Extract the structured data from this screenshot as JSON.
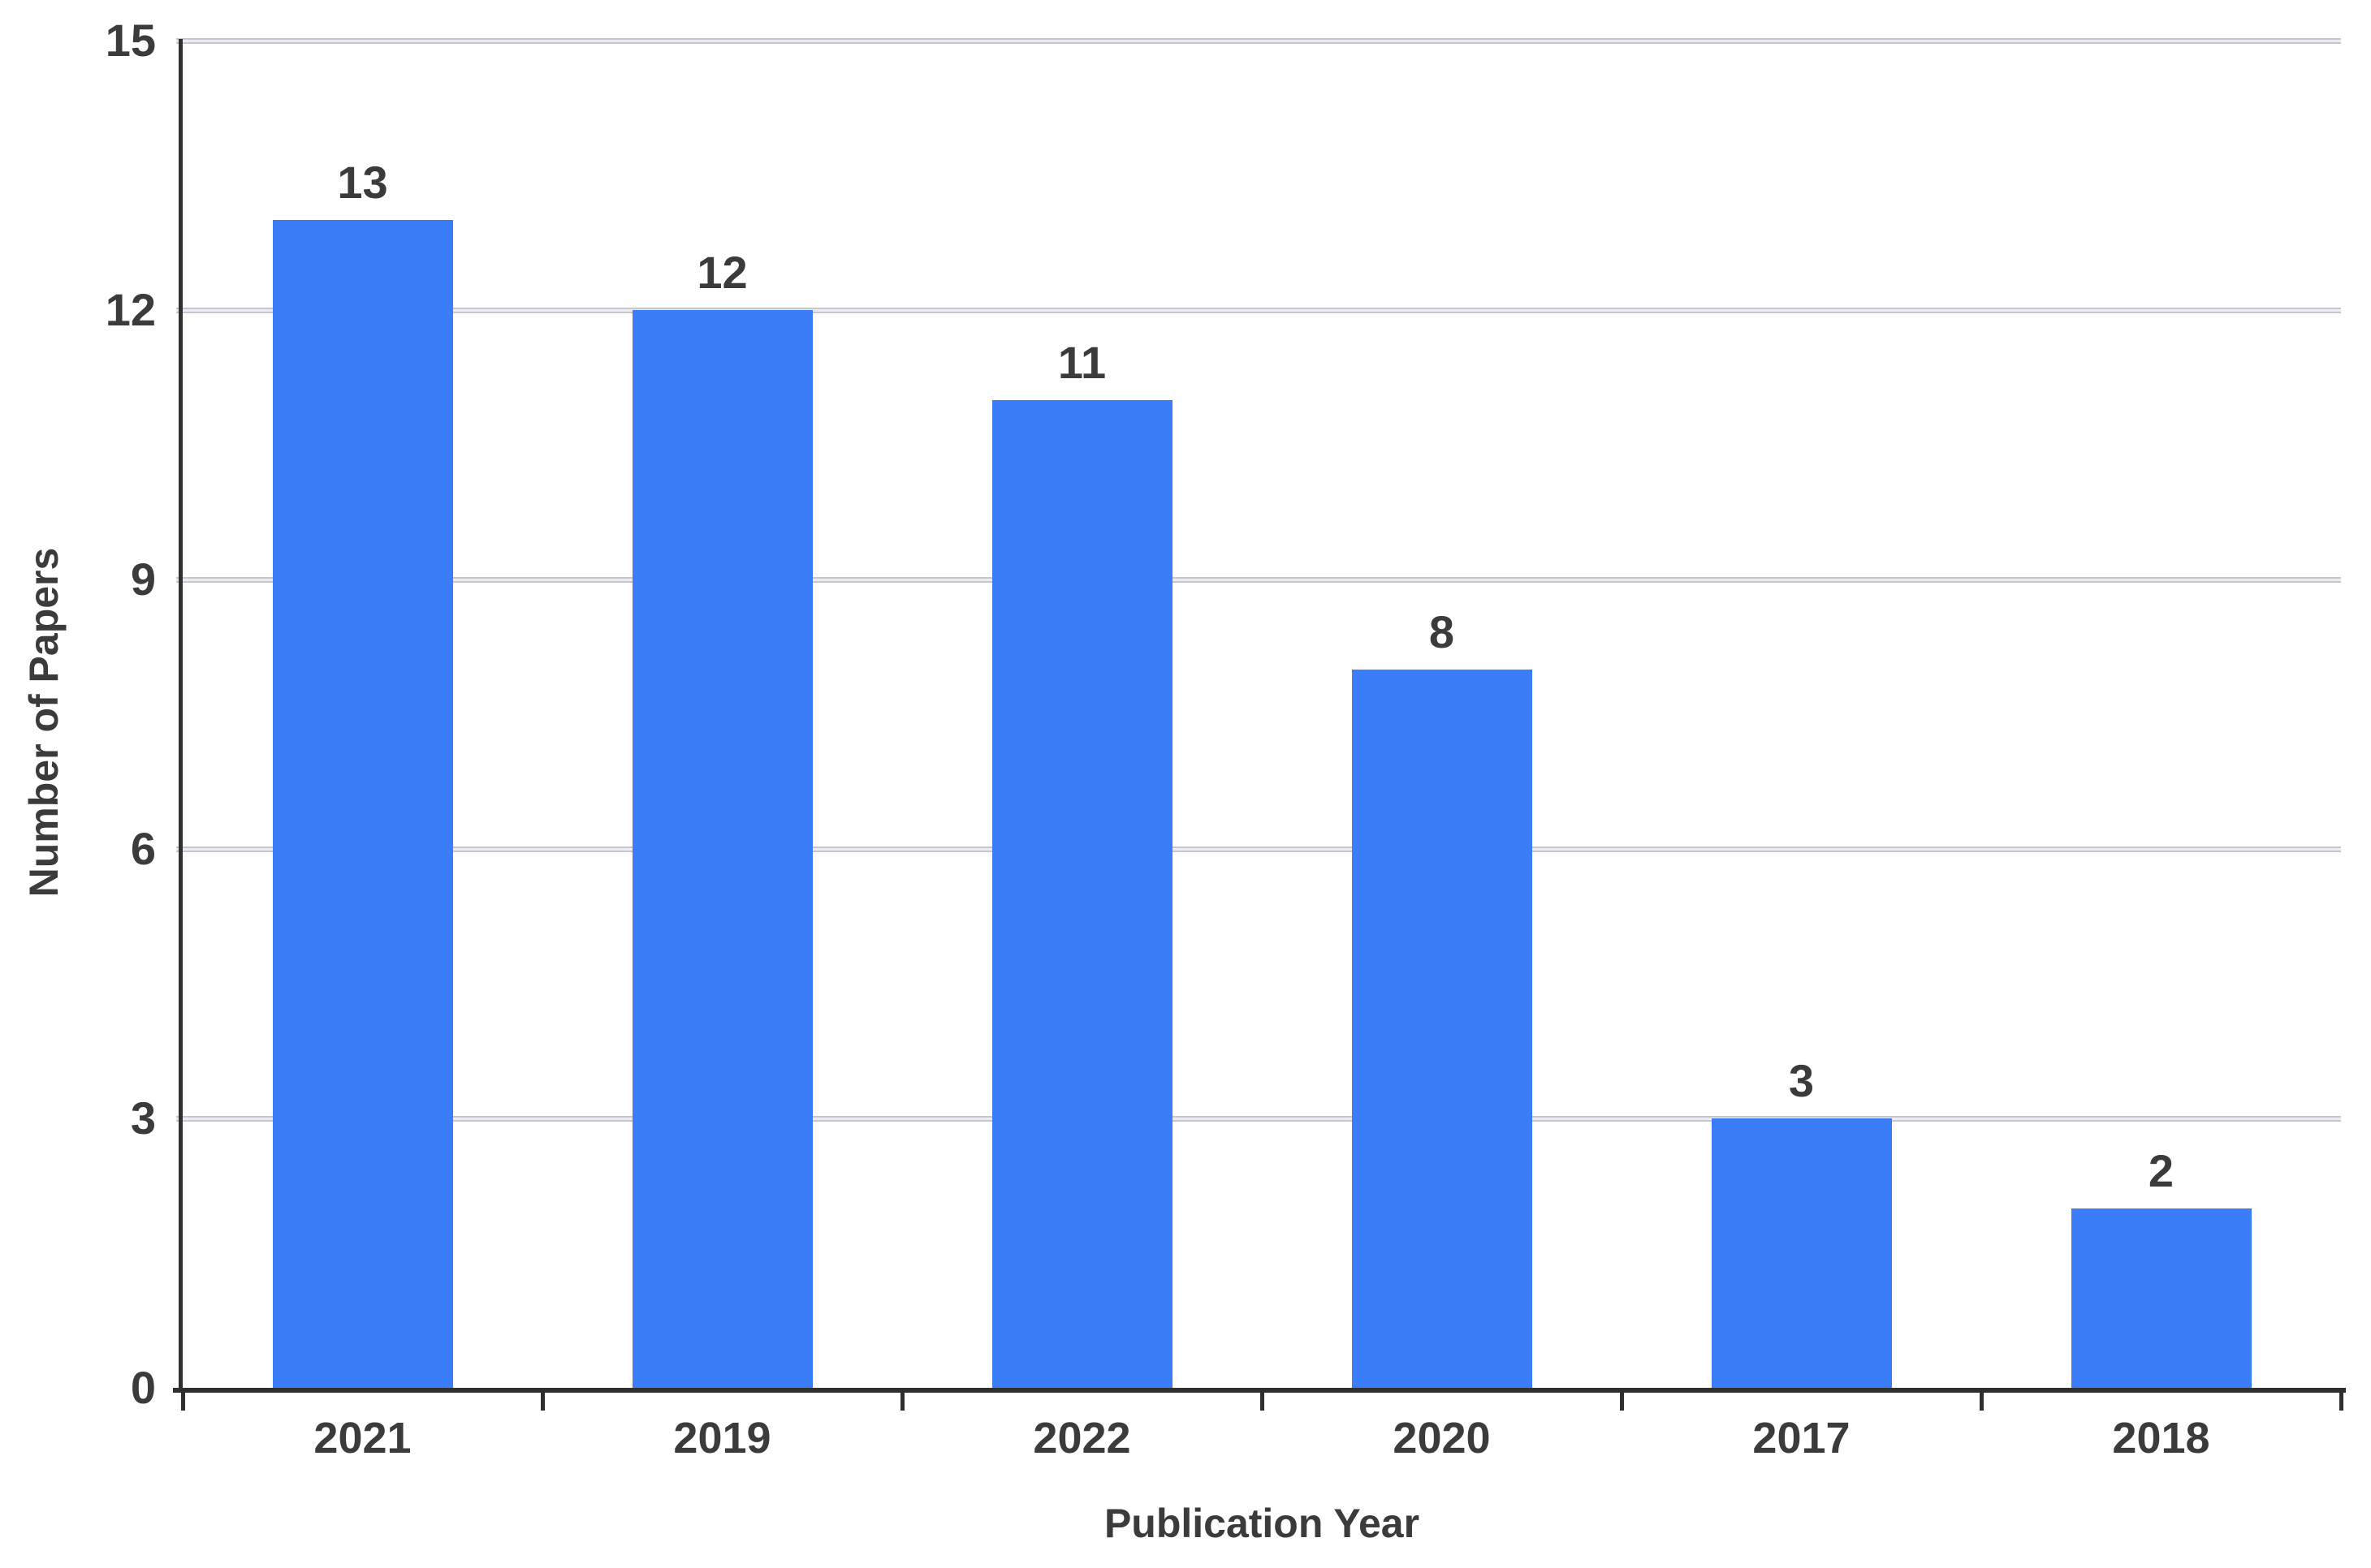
{
  "chart_data": {
    "type": "bar",
    "title": "",
    "categories": [
      "2021",
      "2019",
      "2022",
      "2020",
      "2017",
      "2018"
    ],
    "values": [
      13,
      12,
      11,
      8,
      3,
      2
    ],
    "value_labels_shown": true,
    "xlabel": "Publication Year",
    "ylabel": "Number of Papers",
    "ylim": [
      0,
      15
    ],
    "yticks": [
      0,
      3,
      6,
      9,
      12,
      15
    ],
    "grid": "horizontal gridlines on, light gray",
    "legend_position": "none",
    "bar_color": "#3a7df7"
  },
  "colors": {
    "bar": "#3a7df7",
    "text": "#3b3b3b",
    "axis": "#2f2f2f",
    "grid_edge": "#c4c7d1",
    "grid_center": "#eaecf1",
    "background": "#ffffff"
  }
}
